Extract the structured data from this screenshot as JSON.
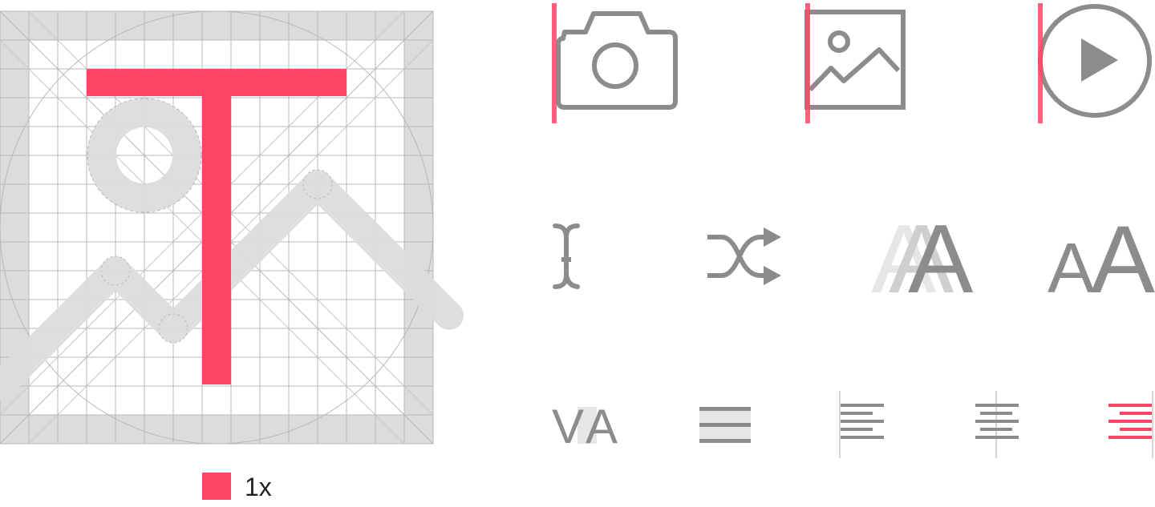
{
  "colors": {
    "accent": "#ff4566",
    "icon_gray": "#8c8c8c",
    "grid_fill": "#dcdcdc",
    "grid_line": "#b8b8b8",
    "light_gray": "#e6e6e6"
  },
  "grid": {
    "cells_per_side": 15,
    "keyline_shape": "circle"
  },
  "legend": {
    "swatch_color": "#ff4566",
    "label": "1x"
  },
  "icons": [
    {
      "name": "camera-icon",
      "row": 1,
      "col": 1,
      "keyline": "left"
    },
    {
      "name": "image-icon",
      "row": 1,
      "col": 2,
      "keyline": "left"
    },
    {
      "name": "play-circle-icon",
      "row": 1,
      "col": 3,
      "keyline": "left"
    },
    {
      "name": "text-cursor-icon",
      "row": 2,
      "col": 1
    },
    {
      "name": "shuffle-icon",
      "row": 2,
      "col": 2
    },
    {
      "name": "letter-a-overlap-icon",
      "row": 2,
      "col": 3
    },
    {
      "name": "letter-a-pair-icon",
      "row": 2,
      "col": 4
    },
    {
      "name": "kerning-va-icon",
      "row": 3,
      "col": 1
    },
    {
      "name": "line-spacing-icon",
      "row": 3,
      "col": 2
    },
    {
      "name": "align-left-icon",
      "row": 3,
      "col": 3
    },
    {
      "name": "align-center-icon",
      "row": 3,
      "col": 4
    },
    {
      "name": "align-right-icon",
      "row": 3,
      "col": 5,
      "highlighted": true
    }
  ],
  "glyphs": {
    "overlap_letter": "A",
    "pair_left": "A",
    "pair_right": "A",
    "kern_left": "V",
    "kern_right": "A"
  }
}
